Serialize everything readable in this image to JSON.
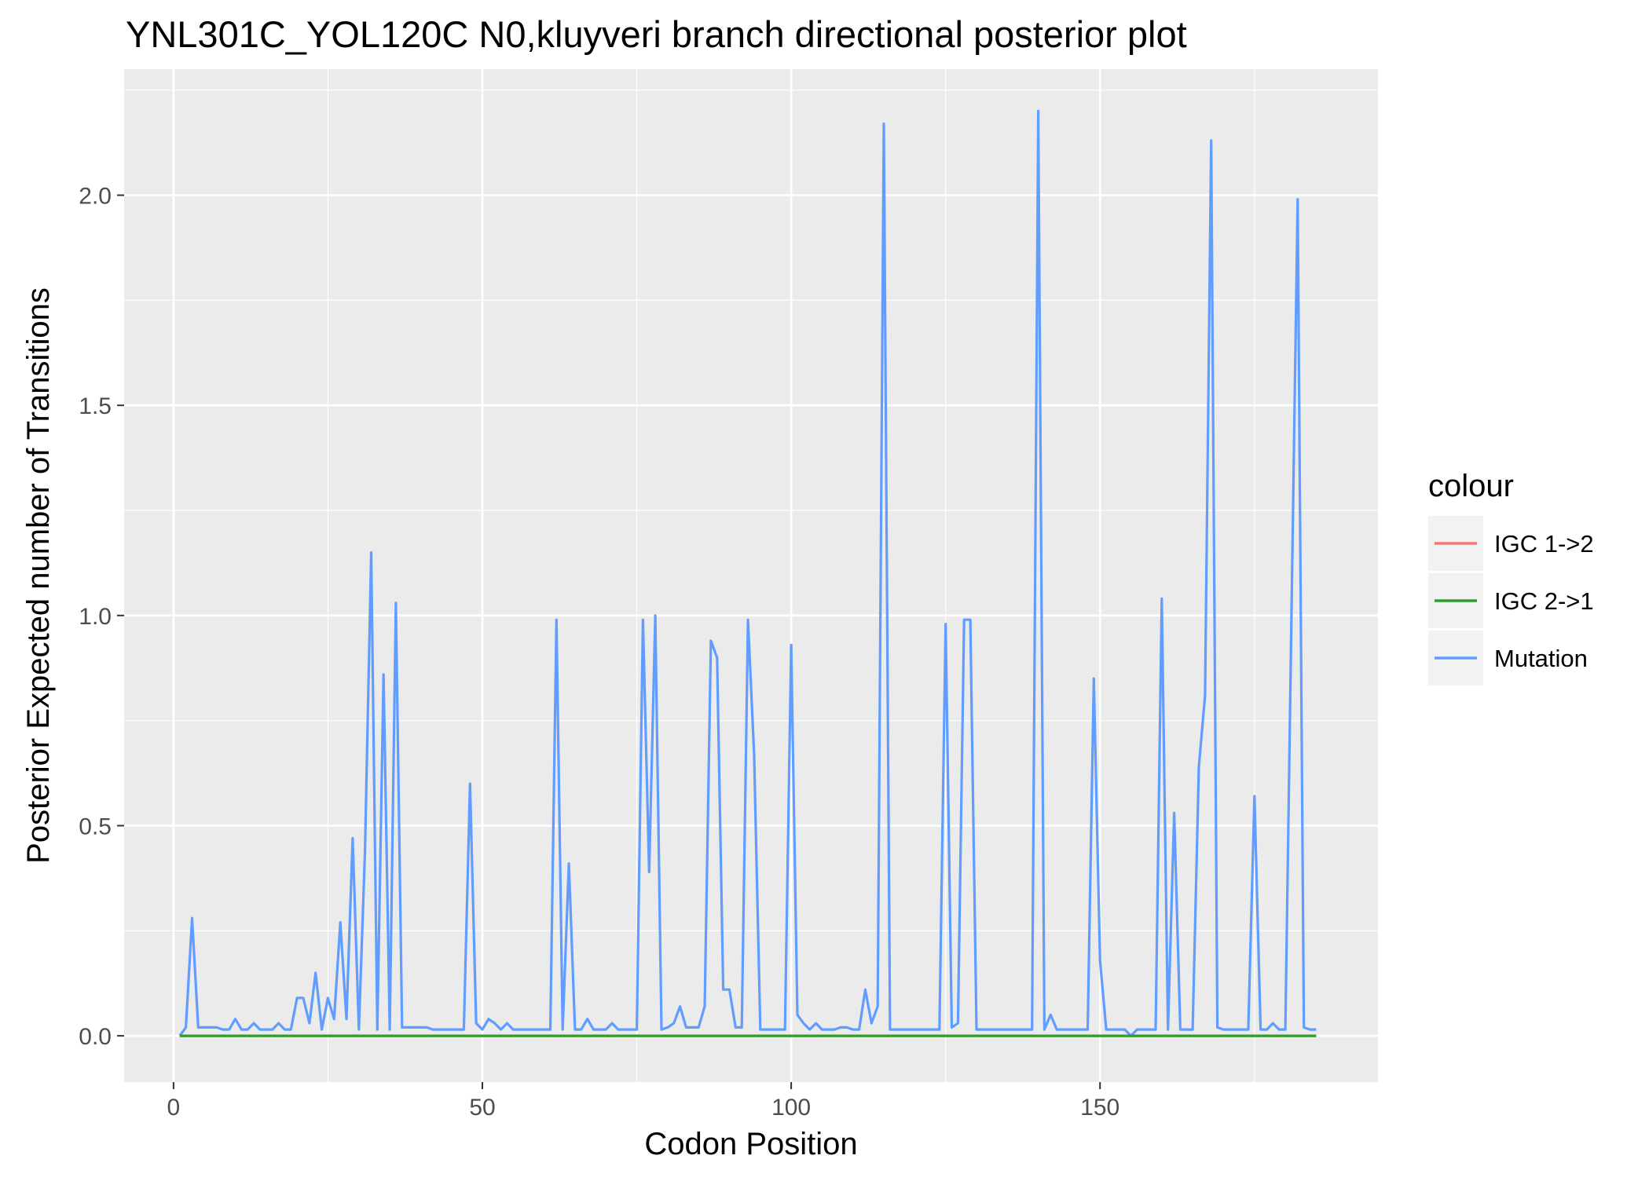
{
  "chart_data": {
    "type": "line",
    "title": "YNL301C_YOL120C N0,kluyveri branch directional posterior plot",
    "xlabel": "Codon Position",
    "ylabel": "Posterior Expected number of Transitions",
    "xlim": [
      -8,
      195
    ],
    "ylim": [
      -0.11,
      2.3
    ],
    "x_ticks": [
      0,
      50,
      100,
      150
    ],
    "x_tick_labels": [
      "0",
      "50",
      "100",
      "150"
    ],
    "y_ticks": [
      0.0,
      0.5,
      1.0,
      1.5,
      2.0
    ],
    "y_tick_labels": [
      "0.0",
      "0.5",
      "1.0",
      "1.5",
      "2.0"
    ],
    "grid": true,
    "legend": {
      "title": "colour",
      "position": "right",
      "entries": [
        "IGC 1->2",
        "IGC 2->1",
        "Mutation"
      ]
    },
    "colors": {
      "IGC 1->2": "#F8766D",
      "IGC 2->1": "#2CA02C",
      "Mutation": "#619CFF",
      "panel": "#EBEBEB",
      "grid": "#FFFFFF"
    },
    "series": [
      {
        "name": "IGC 1->2",
        "x": [
          1,
          185
        ],
        "y": [
          0.0,
          0.0
        ]
      },
      {
        "name": "IGC 2->1",
        "x": [
          1,
          185
        ],
        "y": [
          0.0,
          0.0
        ]
      },
      {
        "name": "Mutation",
        "x": [
          1,
          2,
          3,
          4,
          5,
          6,
          7,
          8,
          9,
          10,
          11,
          12,
          13,
          14,
          15,
          16,
          17,
          18,
          19,
          20,
          21,
          22,
          23,
          24,
          25,
          26,
          27,
          28,
          29,
          30,
          31,
          32,
          33,
          34,
          35,
          36,
          37,
          38,
          39,
          40,
          41,
          42,
          43,
          44,
          45,
          46,
          47,
          48,
          49,
          50,
          51,
          52,
          53,
          54,
          55,
          56,
          57,
          58,
          59,
          60,
          61,
          62,
          63,
          64,
          65,
          66,
          67,
          68,
          69,
          70,
          71,
          72,
          73,
          74,
          75,
          76,
          77,
          78,
          79,
          80,
          81,
          82,
          83,
          84,
          85,
          86,
          87,
          88,
          89,
          90,
          91,
          92,
          93,
          94,
          95,
          96,
          97,
          98,
          99,
          100,
          101,
          102,
          103,
          104,
          105,
          106,
          107,
          108,
          109,
          110,
          111,
          112,
          113,
          114,
          115,
          116,
          117,
          118,
          119,
          120,
          121,
          122,
          123,
          124,
          125,
          126,
          127,
          128,
          129,
          130,
          131,
          132,
          133,
          134,
          135,
          136,
          137,
          138,
          139,
          140,
          141,
          142,
          143,
          144,
          145,
          146,
          147,
          148,
          149,
          150,
          151,
          152,
          153,
          154,
          155,
          156,
          157,
          158,
          159,
          160,
          161,
          162,
          163,
          164,
          165,
          166,
          167,
          168,
          169,
          170,
          171,
          172,
          173,
          174,
          175,
          176,
          177,
          178,
          179,
          180,
          181,
          182,
          183,
          184,
          185
        ],
        "y": [
          0.0,
          0.02,
          0.28,
          0.02,
          0.02,
          0.02,
          0.02,
          0.015,
          0.015,
          0.04,
          0.015,
          0.015,
          0.03,
          0.015,
          0.015,
          0.015,
          0.03,
          0.015,
          0.015,
          0.09,
          0.09,
          0.03,
          0.15,
          0.015,
          0.09,
          0.04,
          0.27,
          0.04,
          0.47,
          0.015,
          0.44,
          1.15,
          0.015,
          0.86,
          0.015,
          1.03,
          0.02,
          0.02,
          0.02,
          0.02,
          0.02,
          0.015,
          0.015,
          0.015,
          0.015,
          0.015,
          0.015,
          0.6,
          0.03,
          0.015,
          0.04,
          0.03,
          0.015,
          0.03,
          0.015,
          0.015,
          0.015,
          0.015,
          0.015,
          0.015,
          0.015,
          0.99,
          0.015,
          0.41,
          0.015,
          0.015,
          0.04,
          0.015,
          0.015,
          0.015,
          0.03,
          0.015,
          0.015,
          0.015,
          0.015,
          0.99,
          0.39,
          1.0,
          0.015,
          0.02,
          0.03,
          0.07,
          0.02,
          0.02,
          0.02,
          0.07,
          0.94,
          0.9,
          0.11,
          0.11,
          0.02,
          0.02,
          0.99,
          0.67,
          0.015,
          0.015,
          0.015,
          0.015,
          0.015,
          0.93,
          0.05,
          0.03,
          0.015,
          0.03,
          0.015,
          0.015,
          0.015,
          0.02,
          0.02,
          0.015,
          0.015,
          0.11,
          0.03,
          0.07,
          2.17,
          0.015,
          0.015,
          0.015,
          0.015,
          0.015,
          0.015,
          0.015,
          0.015,
          0.015,
          0.98,
          0.02,
          0.03,
          0.99,
          0.99,
          0.015,
          0.015,
          0.015,
          0.015,
          0.015,
          0.015,
          0.015,
          0.015,
          0.015,
          0.015,
          2.2,
          0.015,
          0.05,
          0.015,
          0.015,
          0.015,
          0.015,
          0.015,
          0.015,
          0.85,
          0.18,
          0.015,
          0.015,
          0.015,
          0.015,
          0.0,
          0.015,
          0.015,
          0.015,
          0.015,
          1.04,
          0.015,
          0.53,
          0.015,
          0.015,
          0.015,
          0.64,
          0.81,
          2.13,
          0.02,
          0.015,
          0.015,
          0.015,
          0.015,
          0.015,
          0.57,
          0.015,
          0.015,
          0.03,
          0.015,
          0.015,
          1.0,
          1.99,
          0.02,
          0.015,
          0.015
        ]
      }
    ]
  }
}
